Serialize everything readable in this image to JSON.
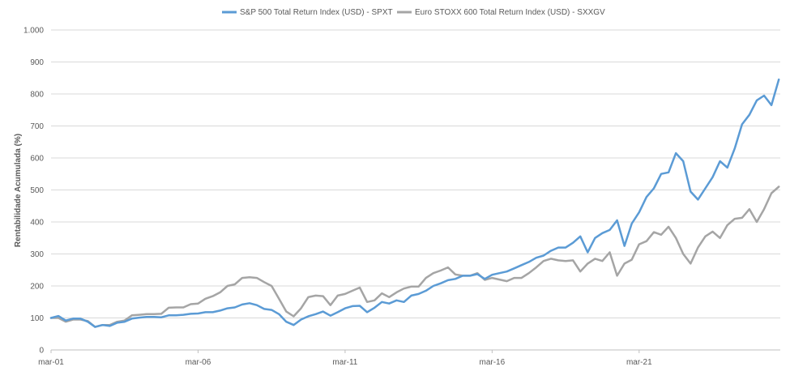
{
  "chart_data": {
    "type": "line",
    "title": "",
    "xlabel": "",
    "ylabel": "Rentabilidade Acumulada (%)",
    "ylim": [
      0,
      1000
    ],
    "y_ticks": [
      0,
      100,
      200,
      300,
      400,
      500,
      600,
      700,
      800,
      900,
      1000
    ],
    "y_tick_labels": [
      "0",
      "100",
      "200",
      "300",
      "400",
      "500",
      "600",
      "700",
      "800",
      "900",
      "1.000"
    ],
    "xlim": [
      2001.0,
      2025.8
    ],
    "x_ticks": [
      2001.0,
      2006.0,
      2011.0,
      2016.0,
      2021.0
    ],
    "x_tick_labels": [
      "mar-01",
      "mar-06",
      "mar-11",
      "mar-16",
      "mar-21"
    ],
    "grid": "horizontal",
    "legend_position": "top",
    "series": [
      {
        "name": "S&P 500 Total Return Index (USD) - SPXT",
        "color": "#5b9bd5",
        "x": [
          2001.0,
          2001.25,
          2001.5,
          2001.75,
          2002.0,
          2002.25,
          2002.5,
          2002.75,
          2003.0,
          2003.25,
          2003.5,
          2003.75,
          2004.0,
          2004.25,
          2004.5,
          2004.75,
          2005.0,
          2005.25,
          2005.5,
          2005.75,
          2006.0,
          2006.25,
          2006.5,
          2006.75,
          2007.0,
          2007.25,
          2007.5,
          2007.75,
          2008.0,
          2008.25,
          2008.5,
          2008.75,
          2009.0,
          2009.25,
          2009.5,
          2009.75,
          2010.0,
          2010.25,
          2010.5,
          2010.75,
          2011.0,
          2011.25,
          2011.5,
          2011.75,
          2012.0,
          2012.25,
          2012.5,
          2012.75,
          2013.0,
          2013.25,
          2013.5,
          2013.75,
          2014.0,
          2014.25,
          2014.5,
          2014.75,
          2015.0,
          2015.25,
          2015.5,
          2015.75,
          2016.0,
          2016.25,
          2016.5,
          2016.75,
          2017.0,
          2017.25,
          2017.5,
          2017.75,
          2018.0,
          2018.25,
          2018.5,
          2018.75,
          2019.0,
          2019.25,
          2019.5,
          2019.75,
          2020.0,
          2020.25,
          2020.5,
          2020.75,
          2021.0,
          2021.25,
          2021.5,
          2021.75,
          2022.0,
          2022.25,
          2022.5,
          2022.75,
          2023.0,
          2023.25,
          2023.5,
          2023.75,
          2024.0,
          2024.25,
          2024.5,
          2024.75,
          2025.0,
          2025.25,
          2025.5,
          2025.75
        ],
        "values": [
          100,
          106,
          92,
          98,
          98,
          88,
          72,
          78,
          75,
          85,
          88,
          98,
          101,
          103,
          103,
          102,
          108,
          108,
          110,
          113,
          114,
          118,
          118,
          123,
          130,
          133,
          142,
          146,
          140,
          128,
          125,
          112,
          88,
          78,
          95,
          105,
          112,
          120,
          107,
          118,
          130,
          137,
          138,
          118,
          132,
          150,
          145,
          155,
          150,
          170,
          175,
          185,
          200,
          208,
          218,
          222,
          232,
          232,
          237,
          222,
          235,
          240,
          245,
          255,
          265,
          275,
          288,
          295,
          310,
          320,
          320,
          335,
          355,
          305,
          350,
          365,
          375,
          405,
          325,
          395,
          430,
          478,
          505,
          550,
          555,
          615,
          590,
          495,
          470,
          505,
          540,
          590,
          570,
          630,
          705,
          735,
          780,
          795,
          765,
          845
        ]
      },
      {
        "name": "Euro STOXX 600 Total Return Index (USD) - SXXGV",
        "color": "#a5a5a5",
        "x": [
          2001.0,
          2001.25,
          2001.5,
          2001.75,
          2002.0,
          2002.25,
          2002.5,
          2002.75,
          2003.0,
          2003.25,
          2003.5,
          2003.75,
          2004.0,
          2004.25,
          2004.5,
          2004.75,
          2005.0,
          2005.25,
          2005.5,
          2005.75,
          2006.0,
          2006.25,
          2006.5,
          2006.75,
          2007.0,
          2007.25,
          2007.5,
          2007.75,
          2008.0,
          2008.25,
          2008.5,
          2008.75,
          2009.0,
          2009.25,
          2009.5,
          2009.75,
          2010.0,
          2010.25,
          2010.5,
          2010.75,
          2011.0,
          2011.25,
          2011.5,
          2011.75,
          2012.0,
          2012.25,
          2012.5,
          2012.75,
          2013.0,
          2013.25,
          2013.5,
          2013.75,
          2014.0,
          2014.25,
          2014.5,
          2014.75,
          2015.0,
          2015.25,
          2015.5,
          2015.75,
          2016.0,
          2016.25,
          2016.5,
          2016.75,
          2017.0,
          2017.25,
          2017.5,
          2017.75,
          2018.0,
          2018.25,
          2018.5,
          2018.75,
          2019.0,
          2019.25,
          2019.5,
          2019.75,
          2020.0,
          2020.25,
          2020.5,
          2020.75,
          2021.0,
          2021.25,
          2021.5,
          2021.75,
          2022.0,
          2022.25,
          2022.5,
          2022.75,
          2023.0,
          2023.25,
          2023.5,
          2023.75,
          2024.0,
          2024.25,
          2024.5,
          2024.75,
          2025.0,
          2025.25,
          2025.5,
          2025.75
        ],
        "values": [
          100,
          100,
          88,
          95,
          95,
          90,
          72,
          78,
          78,
          88,
          92,
          108,
          110,
          112,
          112,
          113,
          132,
          133,
          133,
          143,
          145,
          160,
          168,
          180,
          200,
          205,
          225,
          227,
          225,
          212,
          200,
          160,
          120,
          105,
          130,
          165,
          170,
          168,
          140,
          170,
          175,
          185,
          195,
          150,
          155,
          177,
          165,
          180,
          192,
          198,
          198,
          225,
          240,
          248,
          258,
          236,
          232,
          232,
          240,
          219,
          225,
          220,
          215,
          225,
          225,
          240,
          258,
          278,
          285,
          280,
          278,
          280,
          245,
          270,
          285,
          278,
          305,
          232,
          270,
          282,
          330,
          340,
          368,
          360,
          385,
          350,
          300,
          270,
          320,
          355,
          370,
          350,
          390,
          410,
          413,
          440,
          400,
          440,
          490,
          510
        ]
      }
    ]
  }
}
